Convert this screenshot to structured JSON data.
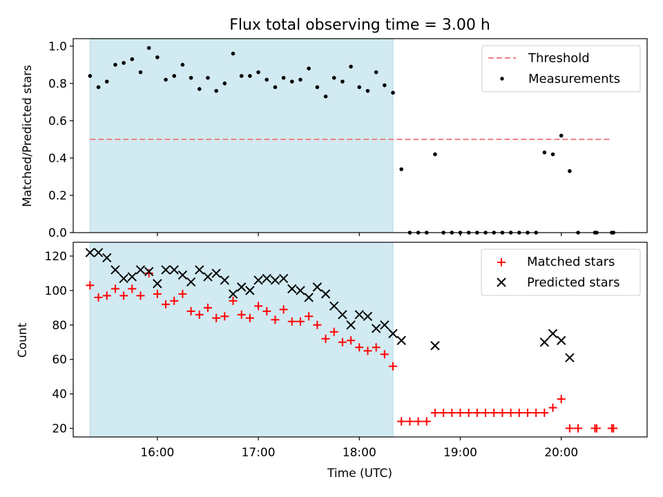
{
  "figure": {
    "title": "Flux total observing time = 3.00 h"
  },
  "chart_data": [
    {
      "type": "scatter",
      "ylabel": "Matched/Predicted stars",
      "xlabel": "",
      "xlim": [
        "15:10",
        "20:51"
      ],
      "ylim": [
        0.0,
        1.04
      ],
      "x_ticks": [
        "16:00",
        "17:00",
        "18:00",
        "19:00",
        "20:00"
      ],
      "x_tick_labels_shown": false,
      "y_ticks": [
        "0.0",
        "0.2",
        "0.4",
        "0.6",
        "0.8",
        "1.0"
      ],
      "shaded_span": {
        "x": [
          "15:20",
          "18:20"
        ],
        "color": "#add8e6"
      },
      "legend": {
        "placement": "upper right",
        "entries": [
          "Threshold",
          "Measurements"
        ]
      },
      "series": [
        {
          "name": "Threshold",
          "style": "dashed-line",
          "color": "#f08080",
          "x": [
            "15:20",
            "20:30"
          ],
          "y": [
            0.5,
            0.5
          ]
        },
        {
          "name": "Measurements",
          "style": "dot",
          "color": "#000000",
          "x": [
            "15:20",
            "15:25",
            "15:30",
            "15:35",
            "15:40",
            "15:45",
            "15:50",
            "15:55",
            "16:00",
            "16:05",
            "16:10",
            "16:15",
            "16:20",
            "16:25",
            "16:30",
            "16:35",
            "16:40",
            "16:45",
            "16:50",
            "16:55",
            "17:00",
            "17:05",
            "17:10",
            "17:15",
            "17:20",
            "17:25",
            "17:30",
            "17:35",
            "17:40",
            "17:45",
            "17:50",
            "17:55",
            "18:00",
            "18:05",
            "18:10",
            "18:15",
            "18:20",
            "18:25",
            "18:30",
            "18:35",
            "18:40",
            "18:45",
            "18:50",
            "18:55",
            "19:00",
            "19:05",
            "19:10",
            "19:15",
            "19:20",
            "19:25",
            "19:30",
            "19:35",
            "19:40",
            "19:45",
            "19:50",
            "19:55",
            "20:00",
            "20:05",
            "20:10",
            "20:20",
            "20:21",
            "20:30",
            "20:31"
          ],
          "y": [
            0.84,
            0.78,
            0.81,
            0.9,
            0.91,
            0.93,
            0.86,
            0.99,
            0.94,
            0.82,
            0.84,
            0.9,
            0.83,
            0.77,
            0.83,
            0.76,
            0.8,
            0.96,
            0.84,
            0.84,
            0.86,
            0.82,
            0.78,
            0.83,
            0.81,
            0.82,
            0.88,
            0.78,
            0.73,
            0.83,
            0.81,
            0.89,
            0.78,
            0.76,
            0.86,
            0.79,
            0.75,
            0.34,
            0.0,
            0.0,
            0.0,
            0.42,
            0.0,
            0.0,
            0.0,
            0.0,
            0.0,
            0.0,
            0.0,
            0.0,
            0.0,
            0.0,
            0.0,
            0.0,
            0.43,
            0.42,
            0.52,
            0.33,
            0.0,
            0.0,
            0.0,
            0.0,
            0.0
          ]
        }
      ]
    },
    {
      "type": "scatter",
      "ylabel": "Count",
      "xlabel": "Time (UTC)",
      "xlim": [
        "15:10",
        "20:51"
      ],
      "ylim": [
        15,
        128
      ],
      "x_ticks": [
        "16:00",
        "17:00",
        "18:00",
        "19:00",
        "20:00"
      ],
      "x_tick_labels_shown": true,
      "y_ticks": [
        "20",
        "40",
        "60",
        "80",
        "100",
        "120"
      ],
      "shaded_span": {
        "x": [
          "15:20",
          "18:20"
        ],
        "color": "#add8e6"
      },
      "legend": {
        "placement": "upper right",
        "entries": [
          "Matched stars",
          "Predicted stars"
        ]
      },
      "series": [
        {
          "name": "Matched stars",
          "style": "plus",
          "color": "#ff0000",
          "x": [
            "15:20",
            "15:25",
            "15:30",
            "15:35",
            "15:40",
            "15:45",
            "15:50",
            "15:55",
            "16:00",
            "16:05",
            "16:10",
            "16:15",
            "16:20",
            "16:25",
            "16:30",
            "16:35",
            "16:40",
            "16:45",
            "16:50",
            "16:55",
            "17:00",
            "17:05",
            "17:10",
            "17:15",
            "17:20",
            "17:25",
            "17:30",
            "17:35",
            "17:40",
            "17:45",
            "17:50",
            "17:55",
            "18:00",
            "18:05",
            "18:10",
            "18:15",
            "18:20",
            "18:25",
            "18:30",
            "18:35",
            "18:40",
            "18:45",
            "18:50",
            "18:55",
            "19:00",
            "19:05",
            "19:10",
            "19:15",
            "19:20",
            "19:25",
            "19:30",
            "19:35",
            "19:40",
            "19:45",
            "19:50",
            "19:55",
            "20:00",
            "20:05",
            "20:10",
            "20:20",
            "20:21",
            "20:30",
            "20:31"
          ],
          "y": [
            103,
            96,
            97,
            101,
            97,
            101,
            97,
            110,
            98,
            92,
            94,
            98,
            88,
            86,
            90,
            84,
            85,
            94,
            86,
            84,
            91,
            88,
            83,
            89,
            82,
            82,
            85,
            80,
            72,
            76,
            70,
            71,
            67,
            65,
            67,
            63,
            56,
            24,
            24,
            24,
            24,
            29,
            29,
            29,
            29,
            29,
            29,
            29,
            29,
            29,
            29,
            29,
            29,
            29,
            29,
            32,
            37,
            20,
            20,
            20,
            20,
            20,
            20
          ]
        },
        {
          "name": "Predicted stars",
          "style": "x",
          "color": "#000000",
          "x": [
            "15:20",
            "15:25",
            "15:30",
            "15:35",
            "15:40",
            "15:45",
            "15:50",
            "15:55",
            "16:00",
            "16:05",
            "16:10",
            "16:15",
            "16:20",
            "16:25",
            "16:30",
            "16:35",
            "16:40",
            "16:45",
            "16:50",
            "16:55",
            "17:00",
            "17:05",
            "17:10",
            "17:15",
            "17:20",
            "17:25",
            "17:30",
            "17:35",
            "17:40",
            "17:45",
            "17:50",
            "17:55",
            "18:00",
            "18:05",
            "18:10",
            "18:15",
            "18:20",
            "18:25",
            "18:45",
            "19:50",
            "19:55",
            "20:00",
            "20:05"
          ],
          "y": [
            122,
            122,
            119,
            112,
            107,
            108,
            112,
            111,
            104,
            112,
            112,
            109,
            105,
            112,
            108,
            110,
            106,
            98,
            102,
            100,
            106,
            107,
            106,
            107,
            101,
            100,
            96,
            102,
            98,
            91,
            86,
            80,
            86,
            85,
            78,
            80,
            75,
            71,
            68,
            70,
            75,
            71,
            61
          ]
        }
      ]
    }
  ]
}
